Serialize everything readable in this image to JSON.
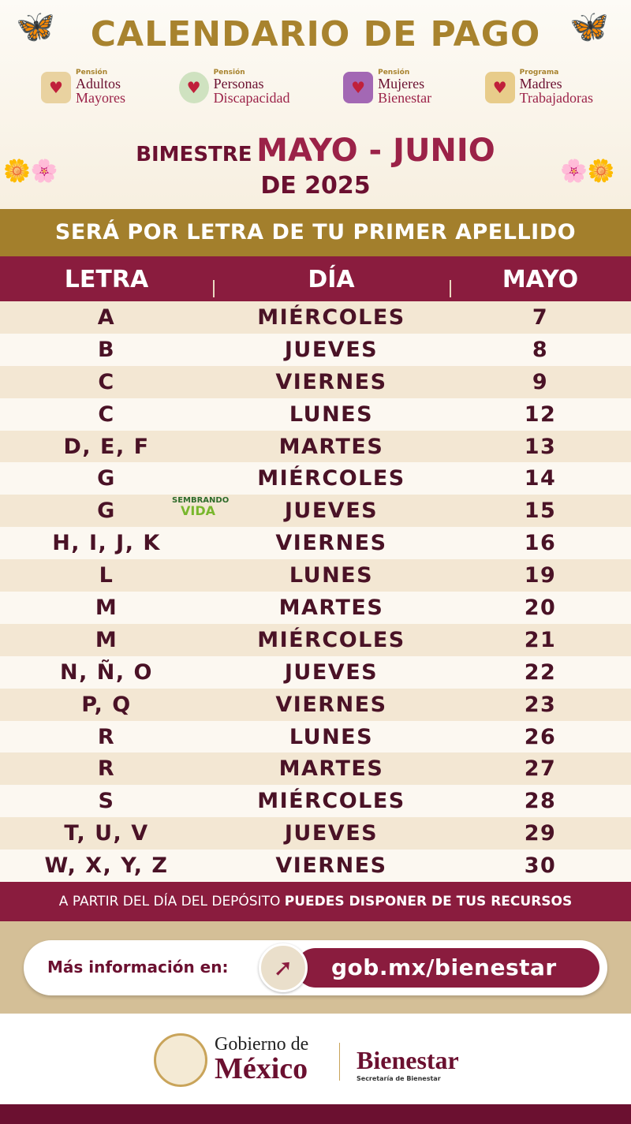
{
  "title": "CALENDARIO DE PAGO",
  "programs": [
    {
      "kicker": "Pensión",
      "l1": "Adultos",
      "l2": "Mayores",
      "icon": "elderly-couple-icon"
    },
    {
      "kicker": "Pensión",
      "l1": "Personas",
      "l2": "Discapacidad",
      "icon": "disability-icon"
    },
    {
      "kicker": "Pensión",
      "l1": "Mujeres",
      "l2": "Bienestar",
      "icon": "women-icon"
    },
    {
      "kicker": "Programa",
      "l1": "Madres",
      "l2": "Trabajadoras",
      "icon": "mother-children-icon"
    }
  ],
  "period": {
    "prefix": "BIMESTRE",
    "months": "MAYO - JUNIO",
    "year": "DE 2025"
  },
  "subtitle": "SERÁ POR LETRA DE TU PRIMER APELLIDO",
  "table": {
    "headers": [
      "LETRA",
      "DÍA",
      "MAYO"
    ],
    "rows": [
      [
        "A",
        "MIÉRCOLES",
        "7"
      ],
      [
        "B",
        "JUEVES",
        "8"
      ],
      [
        "C",
        "VIERNES",
        "9"
      ],
      [
        "C",
        "LUNES",
        "12"
      ],
      [
        "D, E, F",
        "MARTES",
        "13"
      ],
      [
        "G",
        "MIÉRCOLES",
        "14"
      ],
      [
        "G",
        "JUEVES",
        "15"
      ],
      [
        "H, I, J, K",
        "VIERNES",
        "16"
      ],
      [
        "L",
        "LUNES",
        "19"
      ],
      [
        "M",
        "MARTES",
        "20"
      ],
      [
        "M",
        "MIÉRCOLES",
        "21"
      ],
      [
        "N, Ñ, O",
        "JUEVES",
        "22"
      ],
      [
        "P, Q",
        "VIERNES",
        "23"
      ],
      [
        "R",
        "LUNES",
        "26"
      ],
      [
        "R",
        "MARTES",
        "27"
      ],
      [
        "S",
        "MIÉRCOLES",
        "28"
      ],
      [
        "T, U, V",
        "JUEVES",
        "29"
      ],
      [
        "W, X, Y, Z",
        "VIERNES",
        "30"
      ]
    ]
  },
  "sembrando_vida": {
    "l1": "SEMBRANDO",
    "l2": "VIDA"
  },
  "note": {
    "normal": "A PARTIR DEL DÍA DEL DEPÓSITO ",
    "bold": "PUEDES DISPONER DE TUS RECURSOS"
  },
  "info": {
    "label": "Más información en:",
    "url": "gob.mx/bienestar"
  },
  "footer": {
    "gob1": "Gobierno de",
    "gob2": "México",
    "bienestar": "Bienestar",
    "bienestar_sub": "Secretaría de Bienestar"
  },
  "colors": {
    "maroon": "#8a1c3e",
    "gold": "#a37f2c",
    "stripe": "#f3e7d3"
  }
}
